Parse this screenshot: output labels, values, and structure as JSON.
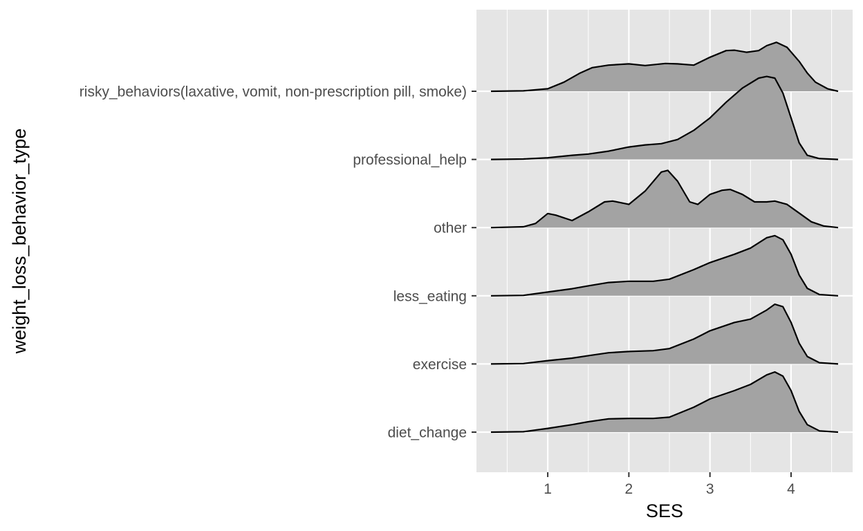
{
  "chart_data": {
    "type": "ridgeline",
    "title": "",
    "xlabel": "SES",
    "ylabel": "weight_loss_behavior_type",
    "xlim": [
      0.3,
      4.58
    ],
    "x_ticks": [
      1,
      2,
      3,
      4
    ],
    "grid": true,
    "legend": "none",
    "colors": {
      "panel": "#e5e5e5",
      "grid": "#ffffff",
      "fill": "#a3a3a3",
      "line": "#000000"
    },
    "categories": [
      "diet_change",
      "exercise",
      "less_eating",
      "other",
      "professional_help",
      "risky_behaviors(laxative, vomit, non-prescription pill, smoke)"
    ],
    "series": [
      {
        "name": "diet_change",
        "points": [
          [
            0.3,
            0
          ],
          [
            0.7,
            0.01
          ],
          [
            1.0,
            0.09
          ],
          [
            1.3,
            0.18
          ],
          [
            1.5,
            0.25
          ],
          [
            1.75,
            0.32
          ],
          [
            2.0,
            0.33
          ],
          [
            2.3,
            0.33
          ],
          [
            2.5,
            0.36
          ],
          [
            2.8,
            0.6
          ],
          [
            3.0,
            0.8
          ],
          [
            3.3,
            1.0
          ],
          [
            3.5,
            1.15
          ],
          [
            3.7,
            1.38
          ],
          [
            3.8,
            1.45
          ],
          [
            3.9,
            1.35
          ],
          [
            4.0,
            1.0
          ],
          [
            4.1,
            0.5
          ],
          [
            4.2,
            0.18
          ],
          [
            4.35,
            0.03
          ],
          [
            4.58,
            0
          ]
        ]
      },
      {
        "name": "exercise",
        "points": [
          [
            0.3,
            0
          ],
          [
            0.7,
            0.01
          ],
          [
            1.0,
            0.08
          ],
          [
            1.3,
            0.14
          ],
          [
            1.5,
            0.2
          ],
          [
            1.75,
            0.27
          ],
          [
            2.0,
            0.3
          ],
          [
            2.3,
            0.32
          ],
          [
            2.5,
            0.37
          ],
          [
            2.8,
            0.6
          ],
          [
            3.0,
            0.8
          ],
          [
            3.3,
            1.0
          ],
          [
            3.5,
            1.08
          ],
          [
            3.7,
            1.3
          ],
          [
            3.8,
            1.44
          ],
          [
            3.9,
            1.38
          ],
          [
            4.0,
            1.0
          ],
          [
            4.1,
            0.5
          ],
          [
            4.2,
            0.18
          ],
          [
            4.35,
            0.03
          ],
          [
            4.58,
            0
          ]
        ]
      },
      {
        "name": "less_eating",
        "points": [
          [
            0.3,
            0
          ],
          [
            0.7,
            0.01
          ],
          [
            1.0,
            0.09
          ],
          [
            1.3,
            0.17
          ],
          [
            1.5,
            0.24
          ],
          [
            1.75,
            0.32
          ],
          [
            2.0,
            0.35
          ],
          [
            2.3,
            0.35
          ],
          [
            2.5,
            0.4
          ],
          [
            2.8,
            0.63
          ],
          [
            3.0,
            0.8
          ],
          [
            3.3,
            1.0
          ],
          [
            3.5,
            1.15
          ],
          [
            3.7,
            1.4
          ],
          [
            3.8,
            1.45
          ],
          [
            3.9,
            1.35
          ],
          [
            4.0,
            1.0
          ],
          [
            4.1,
            0.5
          ],
          [
            4.2,
            0.18
          ],
          [
            4.35,
            0.03
          ],
          [
            4.58,
            0
          ]
        ]
      },
      {
        "name": "other",
        "points": [
          [
            0.3,
            0
          ],
          [
            0.7,
            0.02
          ],
          [
            0.85,
            0.1
          ],
          [
            1.0,
            0.34
          ],
          [
            1.1,
            0.3
          ],
          [
            1.3,
            0.17
          ],
          [
            1.5,
            0.38
          ],
          [
            1.7,
            0.62
          ],
          [
            1.8,
            0.64
          ],
          [
            2.0,
            0.56
          ],
          [
            2.2,
            0.88
          ],
          [
            2.4,
            1.34
          ],
          [
            2.48,
            1.38
          ],
          [
            2.6,
            1.12
          ],
          [
            2.75,
            0.62
          ],
          [
            2.85,
            0.56
          ],
          [
            3.0,
            0.8
          ],
          [
            3.15,
            0.9
          ],
          [
            3.25,
            0.92
          ],
          [
            3.4,
            0.8
          ],
          [
            3.55,
            0.62
          ],
          [
            3.7,
            0.62
          ],
          [
            3.8,
            0.64
          ],
          [
            3.95,
            0.56
          ],
          [
            4.1,
            0.35
          ],
          [
            4.25,
            0.14
          ],
          [
            4.4,
            0.04
          ],
          [
            4.58,
            0
          ]
        ]
      },
      {
        "name": "professional_help",
        "points": [
          [
            0.3,
            0
          ],
          [
            0.7,
            0.01
          ],
          [
            1.0,
            0.04
          ],
          [
            1.3,
            0.1
          ],
          [
            1.5,
            0.13
          ],
          [
            1.75,
            0.2
          ],
          [
            2.0,
            0.3
          ],
          [
            2.2,
            0.35
          ],
          [
            2.4,
            0.38
          ],
          [
            2.6,
            0.48
          ],
          [
            2.8,
            0.7
          ],
          [
            3.0,
            1.0
          ],
          [
            3.2,
            1.38
          ],
          [
            3.4,
            1.72
          ],
          [
            3.6,
            1.96
          ],
          [
            3.7,
            2.0
          ],
          [
            3.8,
            1.96
          ],
          [
            3.9,
            1.6
          ],
          [
            4.0,
            1.0
          ],
          [
            4.1,
            0.4
          ],
          [
            4.2,
            0.1
          ],
          [
            4.35,
            0.02
          ],
          [
            4.58,
            0
          ]
        ]
      },
      {
        "name": "risky_behaviors(laxative, vomit, non-prescription pill, smoke)",
        "points": [
          [
            0.3,
            0
          ],
          [
            0.7,
            0.01
          ],
          [
            1.0,
            0.06
          ],
          [
            1.2,
            0.22
          ],
          [
            1.4,
            0.44
          ],
          [
            1.55,
            0.57
          ],
          [
            1.75,
            0.63
          ],
          [
            2.0,
            0.66
          ],
          [
            2.2,
            0.62
          ],
          [
            2.45,
            0.67
          ],
          [
            2.6,
            0.66
          ],
          [
            2.8,
            0.63
          ],
          [
            3.0,
            0.82
          ],
          [
            3.2,
            0.98
          ],
          [
            3.3,
            0.99
          ],
          [
            3.45,
            0.94
          ],
          [
            3.6,
            0.98
          ],
          [
            3.7,
            1.1
          ],
          [
            3.82,
            1.18
          ],
          [
            3.95,
            1.06
          ],
          [
            4.1,
            0.72
          ],
          [
            4.2,
            0.44
          ],
          [
            4.3,
            0.22
          ],
          [
            4.45,
            0.06
          ],
          [
            4.58,
            0
          ]
        ]
      }
    ]
  }
}
